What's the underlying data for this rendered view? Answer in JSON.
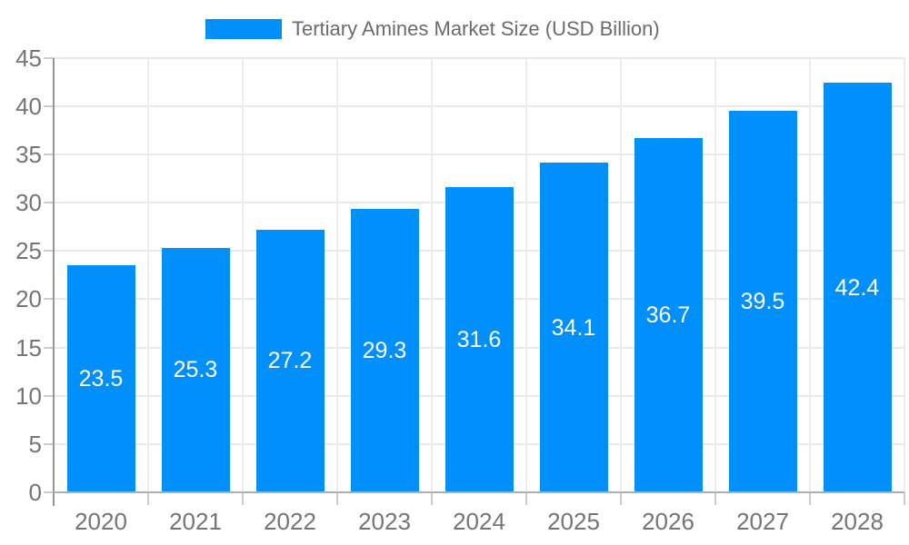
{
  "chart_data": {
    "type": "bar",
    "title": "Tertiary Amines Market Size (USD Billion)",
    "categories": [
      "2020",
      "2021",
      "2022",
      "2023",
      "2024",
      "2025",
      "2026",
      "2027",
      "2028"
    ],
    "series": [
      {
        "name": "Tertiary Amines Market Size (USD Billion)",
        "values": [
          23.5,
          25.3,
          27.2,
          29.3,
          31.6,
          34.1,
          36.7,
          39.5,
          42.4
        ]
      }
    ],
    "value_labels": [
      "23.5",
      "25.3",
      "27.2",
      "29.3",
      "31.6",
      "34.1",
      "36.7",
      "39.5",
      "42.4"
    ],
    "ylim": [
      0,
      45
    ],
    "ytick_step": 5,
    "yticks": [
      "0",
      "5",
      "10",
      "15",
      "20",
      "25",
      "30",
      "35",
      "40",
      "45"
    ],
    "grid": true,
    "legend_position": "top-center",
    "colors": {
      "bar": "#008FFB",
      "value_label": "#ffffff",
      "axis_tick_label": "#757575",
      "legend_label": "#6b6b6b",
      "gridline": "#e8e8e8",
      "gridline_vertical": "#ececec",
      "y_axis_line": "#979797",
      "x_axis_line": "#b0b0b0",
      "tick_mark": "#cccccc",
      "background": "#ffffff"
    }
  }
}
